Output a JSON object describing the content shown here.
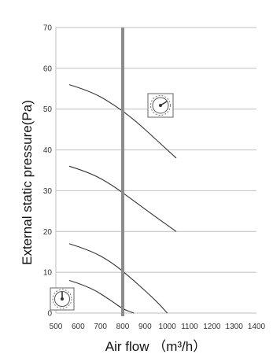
{
  "chart_data": {
    "type": "line",
    "title": "",
    "xlabel": "Air flow （m³/h）",
    "ylabel": "External static pressure(Pa)",
    "xlim": [
      500,
      1400
    ],
    "ylim": [
      0,
      70
    ],
    "x_ticks": [
      500,
      600,
      700,
      800,
      900,
      1000,
      1100,
      1200,
      1300,
      1400
    ],
    "y_ticks": [
      0,
      10,
      20,
      30,
      40,
      50,
      60,
      70
    ],
    "grid": "horizontal",
    "reference_line": {
      "x": 800
    },
    "series": [
      {
        "x": [
          560,
          650,
          750,
          850,
          950,
          1040
        ],
        "y": [
          56,
          54.5,
          51.5,
          47.5,
          42.5,
          38
        ]
      },
      {
        "x": [
          560,
          650,
          750,
          850,
          950,
          1040
        ],
        "y": [
          36,
          34.5,
          31.5,
          27.5,
          23.5,
          20
        ]
      },
      {
        "x": [
          560,
          650,
          750,
          850,
          950,
          1000
        ],
        "y": [
          17,
          15.5,
          12.5,
          8,
          3,
          0
        ]
      },
      {
        "x": [
          560,
          650,
          750,
          800,
          850
        ],
        "y": [
          8,
          6.5,
          3,
          1,
          0
        ]
      }
    ],
    "icons": [
      "dial-high-icon",
      "dial-low-icon"
    ]
  }
}
